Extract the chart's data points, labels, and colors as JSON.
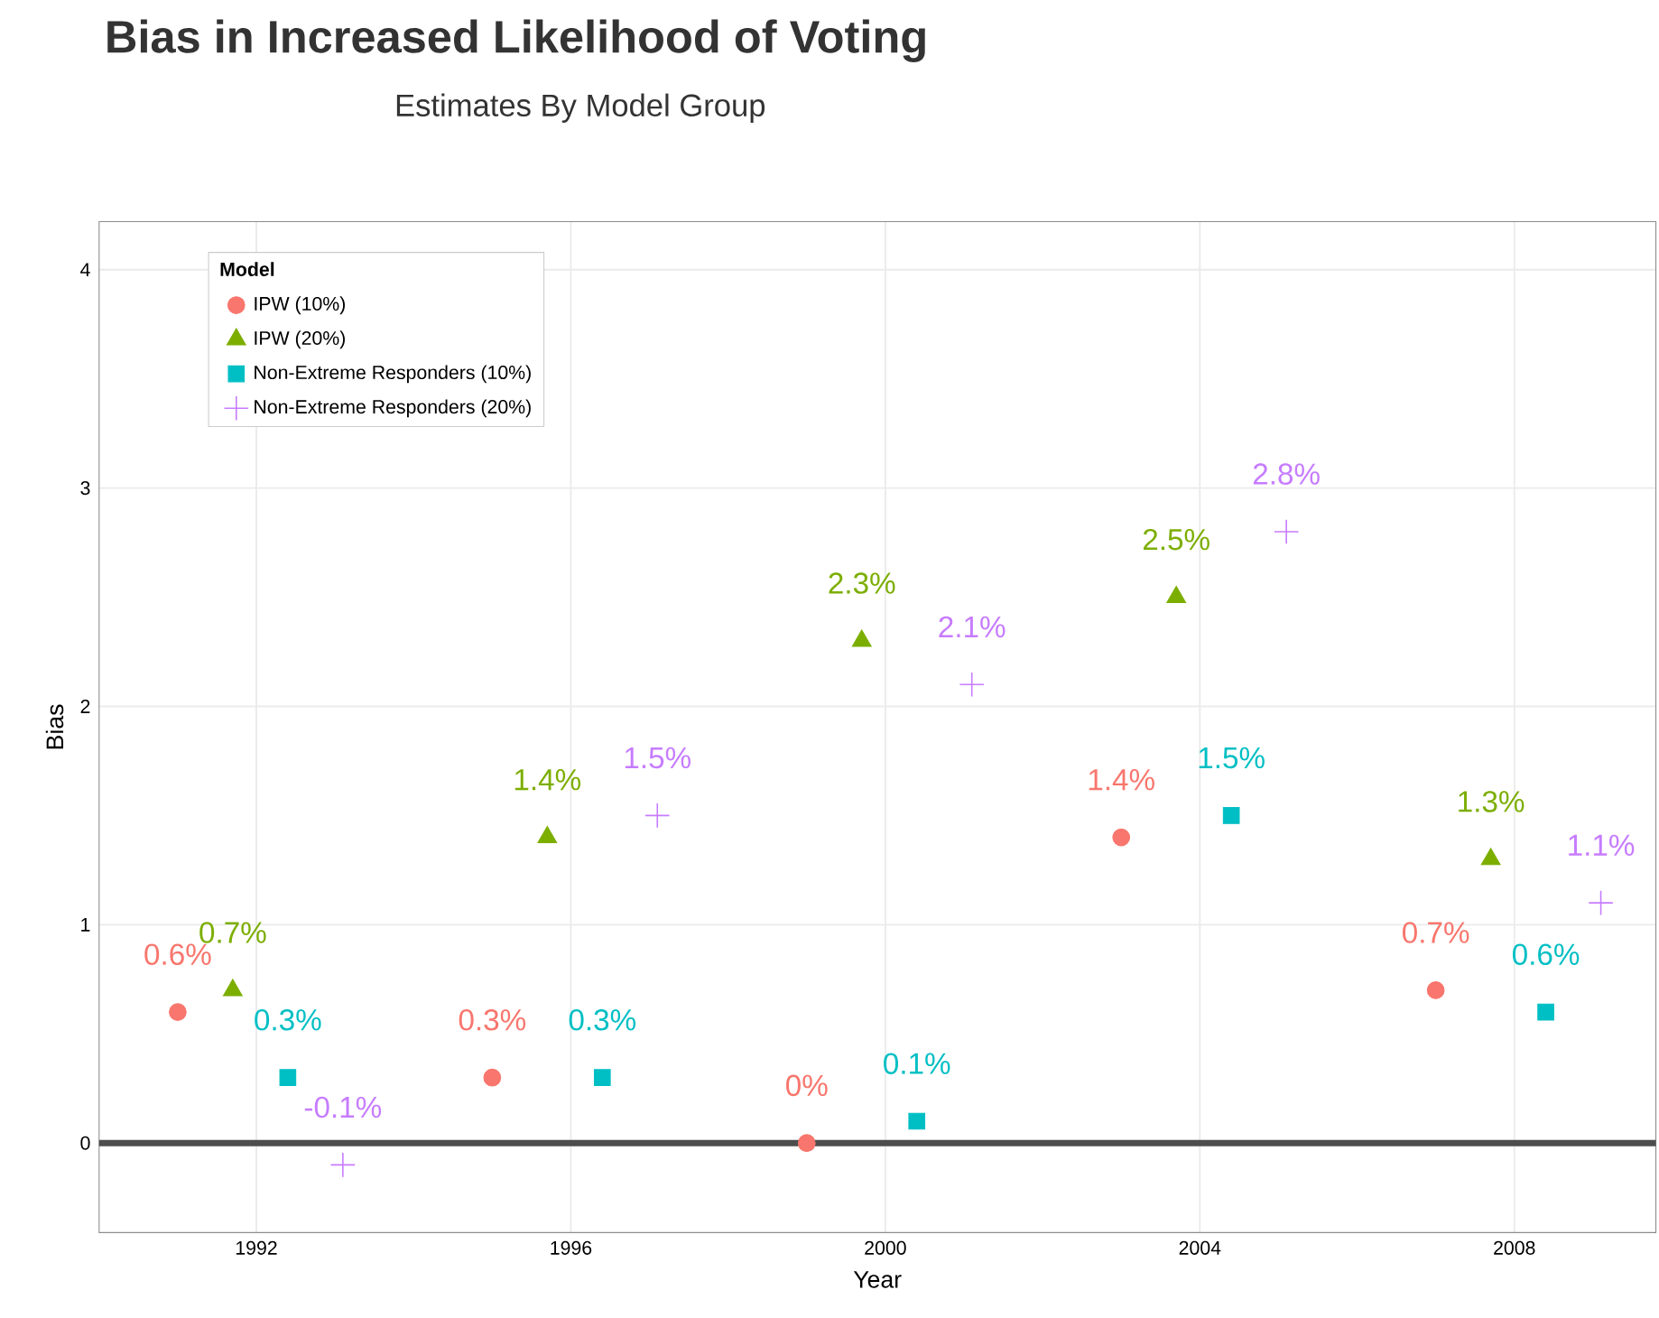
{
  "chart_data": {
    "type": "scatter",
    "title": "Bias in Increased Likelihood of Voting",
    "subtitle": "Estimates By Model Group",
    "xlabel": "Year",
    "ylabel": "Bias",
    "legend_title": "Model",
    "legend": "top left",
    "grid": true,
    "xlim": [
      1990,
      2009.8
    ],
    "ylim": [
      -0.41,
      4.22
    ],
    "xticks": [
      1992,
      1996,
      2000,
      2004,
      2008
    ],
    "yticks": [
      0,
      1,
      2,
      3,
      4
    ],
    "ref_lines": [
      {
        "axis": "y",
        "value": 0,
        "color": "#4d4d4d"
      }
    ],
    "series": [
      {
        "name": "IPW (10%)",
        "color": "#f8766d",
        "marker": "circle",
        "x": [
          1991,
          1995,
          1999,
          2003,
          2007
        ],
        "values": [
          0.6,
          0.3,
          0,
          1.4,
          0.7
        ],
        "value_labels": [
          "0.6%",
          "0.3%",
          "0%",
          "1.4%",
          "0.7%"
        ]
      },
      {
        "name": "IPW (20%)",
        "color": "#7cae00",
        "marker": "triangle",
        "x": [
          1991.7,
          1995.7,
          1999.7,
          2003.7,
          2007.7
        ],
        "values": [
          0.7,
          1.4,
          2.3,
          2.5,
          1.3
        ],
        "value_labels": [
          "0.7%",
          "1.4%",
          "2.3%",
          "2.5%",
          "1.3%"
        ]
      },
      {
        "name": "Non-Extreme Responders (10%)",
        "color": "#00bfc4",
        "marker": "square",
        "x": [
          1992.4,
          1996.4,
          2000.4,
          2004.4,
          2008.4
        ],
        "values": [
          0.3,
          0.3,
          0.1,
          1.5,
          0.6
        ],
        "value_labels": [
          "0.3%",
          "0.3%",
          "0.1%",
          "1.5%",
          "0.6%"
        ]
      },
      {
        "name": "Non-Extreme Responders (20%)",
        "color": "#c77cff",
        "marker": "cross",
        "x": [
          1993.1,
          1997.1,
          2001.1,
          2005.1,
          2009.1
        ],
        "values": [
          -0.1,
          1.5,
          2.1,
          2.8,
          1.1
        ],
        "value_labels": [
          "-0.1%",
          "1.5%",
          "2.1%",
          "2.8%",
          "1.1%"
        ]
      }
    ]
  }
}
